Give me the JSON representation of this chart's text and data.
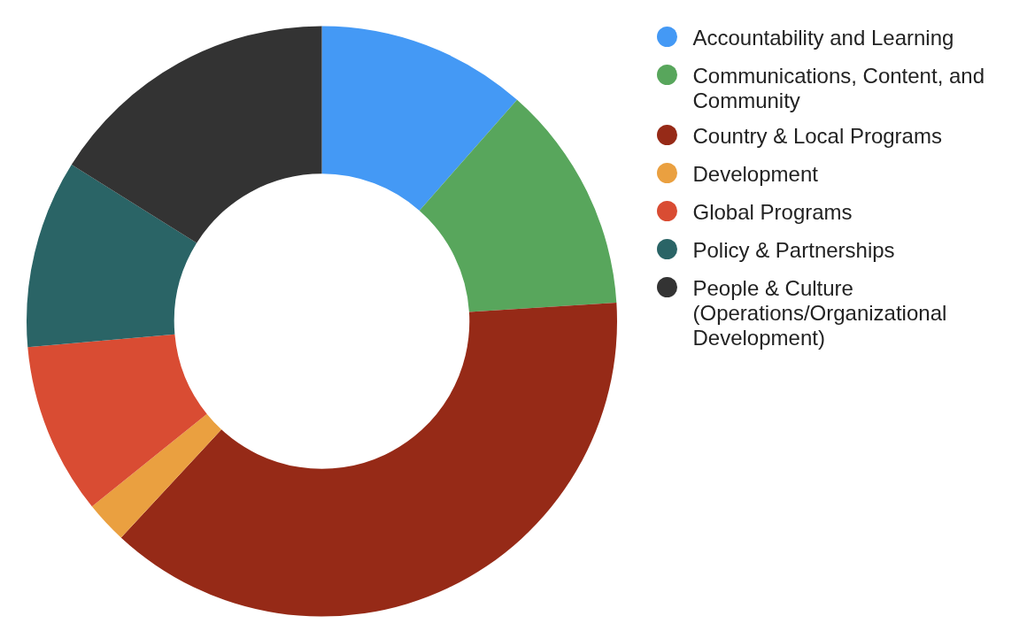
{
  "chart_data": {
    "type": "donut",
    "categories": [
      "Accountability and Learning",
      "Communications, Content, and Community",
      "Country & Local Programs",
      "Development",
      "Global Programs",
      "Policy & Partnerships",
      "People & Culture (Operations/Organizational Development)"
    ],
    "values": [
      11.5,
      12.5,
      37.9,
      2.3,
      9.4,
      10.3,
      16.1
    ],
    "colors": [
      "#4499f5",
      "#58a65c",
      "#962a17",
      "#eaa040",
      "#d94c33",
      "#2a6466",
      "#333333"
    ],
    "legend": "right"
  }
}
